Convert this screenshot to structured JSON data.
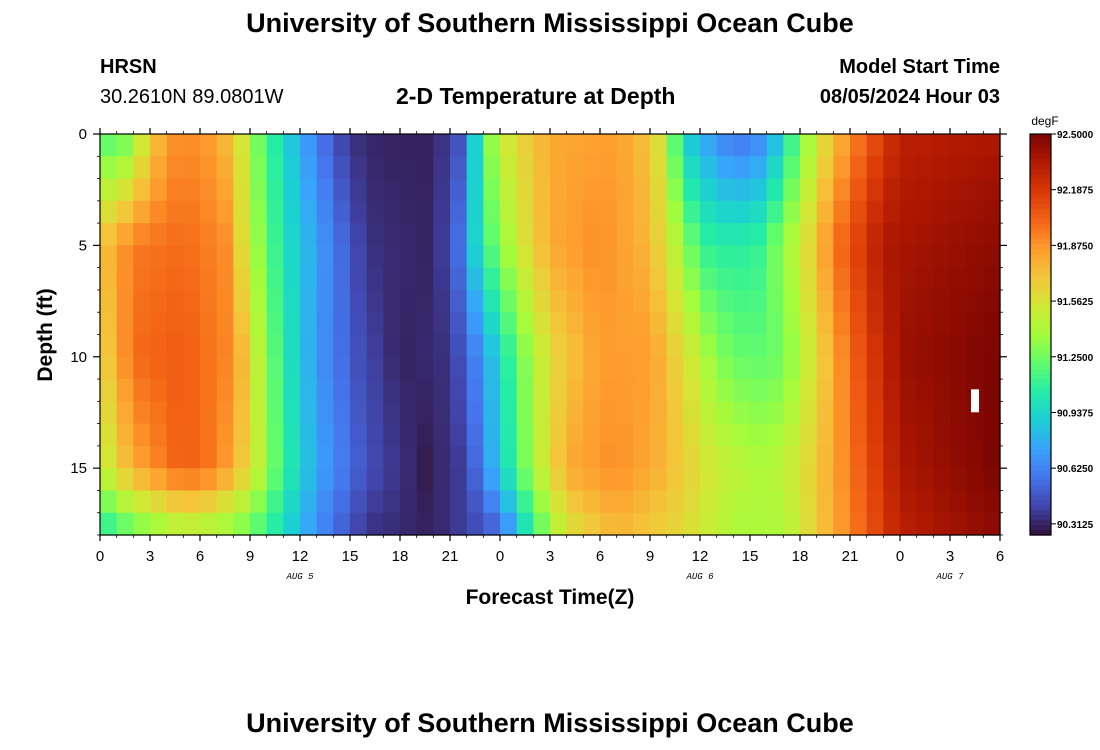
{
  "header": {
    "title": "University of Southern Mississippi Ocean Cube",
    "station": "HRSN",
    "coords": "30.2610N  89.0801W",
    "subtitle": "2-D Temperature at Depth",
    "model_start_label": "Model Start Time",
    "model_start_value": "08/05/2024 Hour 03"
  },
  "footer": {
    "title": "University of Southern Mississippi Ocean Cube"
  },
  "colors": {
    "colormap": [
      "#30123b",
      "#4145ab",
      "#4675ed",
      "#39a2fc",
      "#1bcfd4",
      "#24eca6",
      "#61fc6c",
      "#a4fc3b",
      "#d1e834",
      "#f3c63a",
      "#fe9b2d",
      "#f36315",
      "#d93806",
      "#b11901",
      "#7a0402"
    ],
    "frame": "#000000",
    "marker": "#ffffff"
  },
  "chart_data": {
    "type": "heatmap",
    "title": "2-D Temperature at Depth",
    "xlabel": "Forecast Time(Z)",
    "ylabel": "Depth (ft)",
    "units": "degF",
    "x_ticks": [
      "0",
      "3",
      "6",
      "9",
      "12",
      "15",
      "18",
      "21",
      "0",
      "3",
      "6",
      "9",
      "12",
      "15",
      "18",
      "21",
      "0",
      "3",
      "6"
    ],
    "day_labels": [
      {
        "label": "AUG 5",
        "hour": 12
      },
      {
        "label": "AUG 6",
        "hour": 36
      },
      {
        "label": "AUG 7",
        "hour": 51
      }
    ],
    "xlim": [
      0,
      54
    ],
    "ylim": [
      18,
      0
    ],
    "y_ticks": [
      "0",
      "5",
      "10",
      "15"
    ],
    "y_tick_values": [
      0,
      5,
      10,
      15
    ],
    "colorbar": {
      "min": 90.25,
      "max": 92.5,
      "tick_values": [
        92.5,
        92.1875,
        91.875,
        91.5625,
        91.25,
        90.9375,
        90.625,
        90.3125
      ],
      "tick_labels": [
        "92.5000",
        "92.1875",
        "91.8750",
        "91.5625",
        "91.2500",
        "90.9375",
        "90.6250",
        "90.3125"
      ]
    },
    "grid": {
      "time_step_hours": 1,
      "depth_levels": 18
    },
    "marker_point": {
      "hour": 52.5,
      "depth": 12
    }
  }
}
